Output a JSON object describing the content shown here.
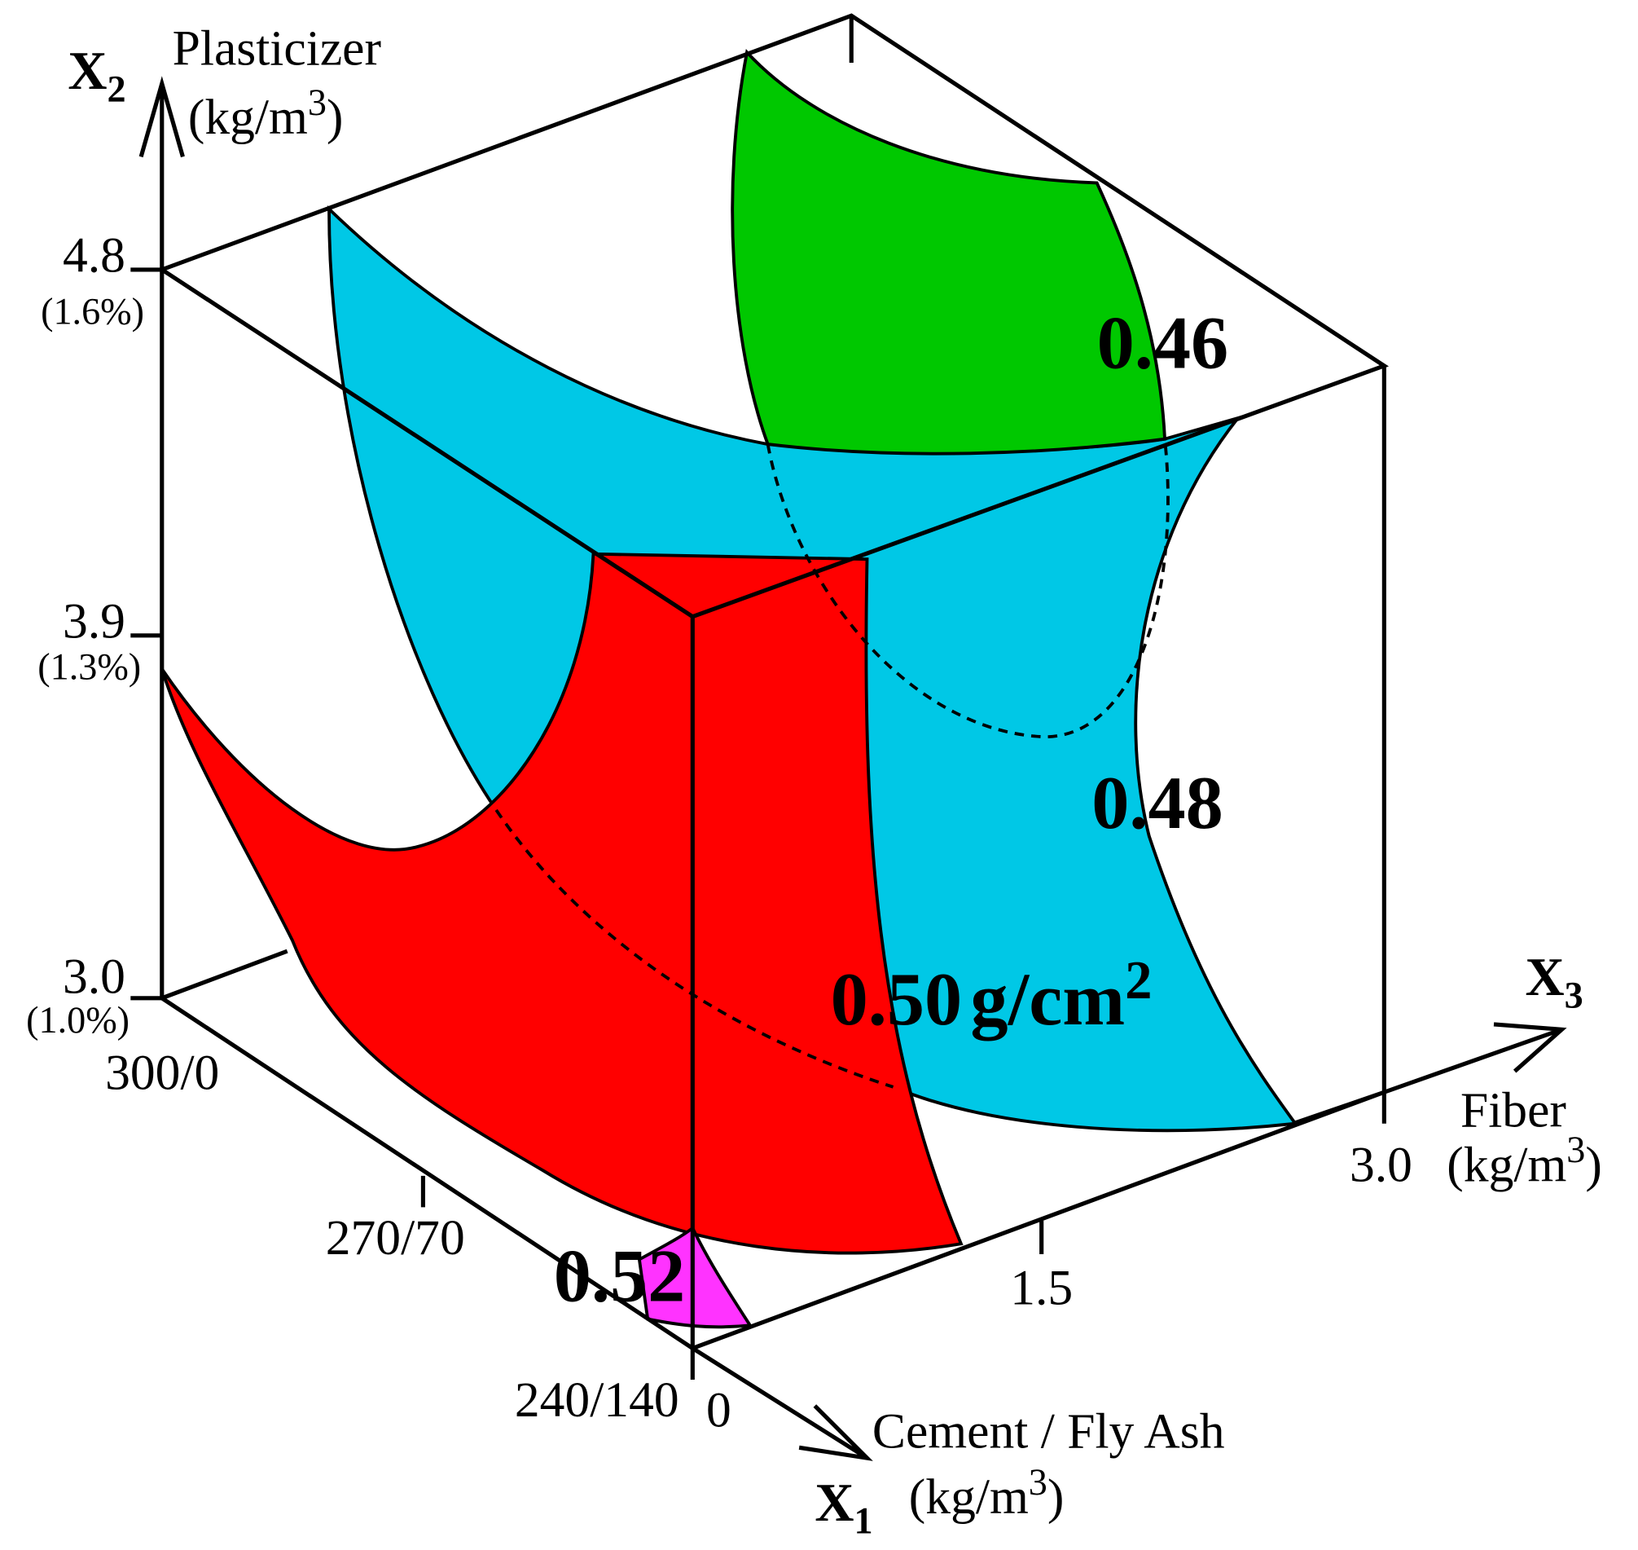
{
  "axes": {
    "x1": {
      "symbol": "X",
      "subscript": "1",
      "name": "Cement / Fly Ash",
      "unit_prefix": "(kg/m",
      "unit_sup": "3",
      "unit_suffix": ")",
      "ticks": [
        "300/0",
        "270/70",
        "240/140"
      ]
    },
    "x2": {
      "symbol": "X",
      "subscript": "2",
      "name": "Plasticizer",
      "unit_prefix": "(kg/m",
      "unit_sup": "3",
      "unit_suffix": ")",
      "ticks": [
        {
          "value": "4.8",
          "percent": "(1.6%)"
        },
        {
          "value": "3.9",
          "percent": "(1.3%)"
        },
        {
          "value": "3.0",
          "percent": "(1.0%)"
        }
      ]
    },
    "x3": {
      "symbol": "X",
      "subscript": "3",
      "name": "Fiber",
      "unit_prefix": "(kg/m",
      "unit_sup": "3",
      "unit_suffix": ")",
      "ticks": [
        "0",
        "1.5",
        "3.0"
      ]
    }
  },
  "surfaces": [
    {
      "label": "0.46"
    },
    {
      "label": "0.48"
    },
    {
      "label": "0.50",
      "unit": "g/cm",
      "unit_sup": "2"
    },
    {
      "label": "0.52"
    }
  ]
}
